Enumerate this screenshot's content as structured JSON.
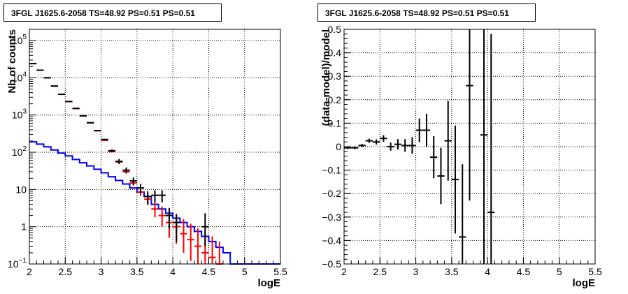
{
  "chart_data": [
    {
      "type": "line",
      "title": "3FGL J1625.6-2058 TS=48.92 PS=0.51 PS=0.51",
      "xlabel": "logE",
      "ylabel": "Nb of counts",
      "xlim": [
        2,
        5.5
      ],
      "ylim": [
        0.1,
        200000
      ],
      "yscale": "log",
      "grid": true,
      "x_ticks": [
        "2",
        "2.5",
        "3",
        "3.5",
        "4",
        "4.5",
        "5",
        "5.5"
      ],
      "x_tick_values": [
        2,
        2.5,
        3,
        3.5,
        4,
        4.5,
        5,
        5.5
      ],
      "y_ticks": [
        {
          "value": 0.1,
          "base": "10",
          "exp": "−1"
        },
        {
          "value": 1,
          "base": "1",
          "exp": ""
        },
        {
          "value": 10,
          "base": "10",
          "exp": ""
        },
        {
          "value": 100,
          "base": "10",
          "exp": "2"
        },
        {
          "value": 1000,
          "base": "10",
          "exp": "3"
        },
        {
          "value": 10000,
          "base": "10",
          "exp": "4"
        },
        {
          "value": 100000,
          "base": "10",
          "exp": "5"
        }
      ],
      "bin_width": 0.1,
      "series": [
        {
          "color": "#0000ff",
          "style": "step",
          "edges": [
            2.0,
            2.1,
            2.2,
            2.3,
            2.4,
            2.5,
            2.6,
            2.7,
            2.8,
            2.9,
            3.0,
            3.1,
            3.2,
            3.3,
            3.4,
            3.5,
            3.6,
            3.7,
            3.8,
            3.9,
            4.0,
            4.1,
            4.2,
            4.3,
            4.4,
            4.5,
            4.6,
            4.7,
            4.8,
            4.9,
            5.0,
            5.1,
            5.2,
            5.3,
            5.4,
            5.5
          ],
          "values": [
            190,
            165,
            140,
            115,
            95,
            80,
            64,
            52,
            43,
            35,
            28,
            22,
            17.5,
            14,
            11,
            8.5,
            6.5,
            4,
            3,
            2.3,
            1.7,
            1.3,
            1.0,
            0.75,
            0.55,
            0.4,
            0.28,
            0.2,
            0.1,
            0.1,
            0.1,
            0.1,
            0.1,
            0.1,
            0.1
          ]
        },
        {
          "color": "#ff0000",
          "style": "errorbar",
          "x": [
            2.05,
            2.15,
            2.25,
            2.35,
            2.45,
            2.55,
            2.65,
            2.75,
            2.85,
            2.95,
            3.05,
            3.15,
            3.25,
            3.35,
            3.45,
            3.55,
            3.65,
            3.75,
            3.85,
            3.95,
            4.05,
            4.15,
            4.25,
            4.35,
            4.45,
            4.55,
            4.65
          ],
          "y": [
            24000,
            16000,
            10000,
            6000,
            3600,
            2300,
            1500,
            950,
            620,
            380,
            210,
            105,
            55,
            30,
            15,
            8.5,
            5.5,
            3,
            2,
            1.3,
            1,
            0.65,
            0.45,
            0.3,
            0.2,
            0.15,
            0.1
          ],
          "ylo": [
            23700,
            15800,
            9800,
            5900,
            3550,
            2250,
            1470,
            930,
            600,
            365,
            200,
            100,
            51,
            27,
            13,
            6.8,
            3.8,
            1.8,
            1.0,
            0.5,
            0.35,
            0.2,
            0.12,
            0.1,
            0.1,
            0.1,
            0.1
          ],
          "yhi": [
            24300,
            16200,
            10200,
            6100,
            3650,
            2350,
            1530,
            970,
            640,
            395,
            220,
            110,
            59,
            33,
            17,
            10.2,
            7.5,
            4.5,
            3.5,
            2.5,
            2.0,
            1.6,
            1.2,
            0.9,
            0.7,
            0.55,
            0.4
          ]
        },
        {
          "color": "#000000",
          "style": "errorbar",
          "x": [
            2.05,
            2.15,
            2.25,
            2.35,
            2.45,
            2.55,
            2.65,
            2.75,
            2.85,
            2.95,
            3.05,
            3.15,
            3.25,
            3.35,
            3.45,
            3.55,
            3.65,
            3.75,
            3.85,
            3.95,
            4.05,
            4.45
          ],
          "y": [
            24000,
            16000,
            10000,
            6000,
            3600,
            2300,
            1500,
            950,
            620,
            380,
            220,
            110,
            57,
            33,
            17,
            11,
            6.5,
            7,
            7,
            2,
            1.3,
            1
          ],
          "ylo": [
            23700,
            15800,
            9800,
            5900,
            3550,
            2250,
            1470,
            930,
            600,
            365,
            210,
            100,
            48,
            27,
            13,
            8,
            4,
            4.5,
            4.5,
            0.9,
            0.4,
            0.3
          ],
          "yhi": [
            24300,
            16200,
            10200,
            6100,
            3650,
            2350,
            1530,
            970,
            640,
            395,
            230,
            120,
            66,
            39,
            21,
            14,
            9,
            9.5,
            9.5,
            3.2,
            2.2,
            2.3
          ]
        }
      ]
    },
    {
      "type": "scatter",
      "title": "3FGL J1625.6-2058 TS=48.92 PS=0.51 PS=0.51",
      "xlabel": "logE",
      "ylabel": "(data-model)/model",
      "xlim": [
        2,
        5.5
      ],
      "ylim": [
        -0.5,
        0.5
      ],
      "grid": true,
      "x_ticks": [
        "2",
        "2.5",
        "3",
        "3.5",
        "4",
        "4.5",
        "5",
        "5.5"
      ],
      "x_tick_values": [
        2,
        2.5,
        3,
        3.5,
        4,
        4.5,
        5,
        5.5
      ],
      "y_ticks": [
        "−0.5",
        "−0.4",
        "−0.3",
        "−0.2",
        "−0.1",
        "0",
        "0.1",
        "0.2",
        "0.3",
        "0.4",
        "0.5"
      ],
      "y_tick_values": [
        -0.5,
        -0.4,
        -0.3,
        -0.2,
        -0.1,
        0,
        0.1,
        0.2,
        0.3,
        0.4,
        0.5
      ],
      "bin_width": 0.1,
      "series": [
        {
          "color": "#000000",
          "style": "errorbar",
          "x": [
            2.05,
            2.15,
            2.25,
            2.35,
            2.45,
            2.55,
            2.65,
            2.75,
            2.85,
            2.95,
            3.05,
            3.15,
            3.25,
            3.35,
            3.45,
            3.55,
            3.65,
            3.75,
            3.95,
            4.05
          ],
          "y": [
            -0.005,
            -0.005,
            0.005,
            0.025,
            0.02,
            0.035,
            0.0,
            0.01,
            0.005,
            0.005,
            0.07,
            0.07,
            -0.045,
            -0.125,
            0.025,
            -0.14,
            -0.385,
            0.26,
            0.05,
            -0.28
          ],
          "yerr": [
            0.005,
            0.006,
            0.007,
            0.009,
            0.011,
            0.014,
            0.017,
            0.022,
            0.027,
            0.035,
            0.05,
            0.07,
            0.09,
            0.12,
            0.17,
            0.23,
            0.31,
            0.49,
            0.55,
            0.76
          ]
        }
      ]
    }
  ]
}
